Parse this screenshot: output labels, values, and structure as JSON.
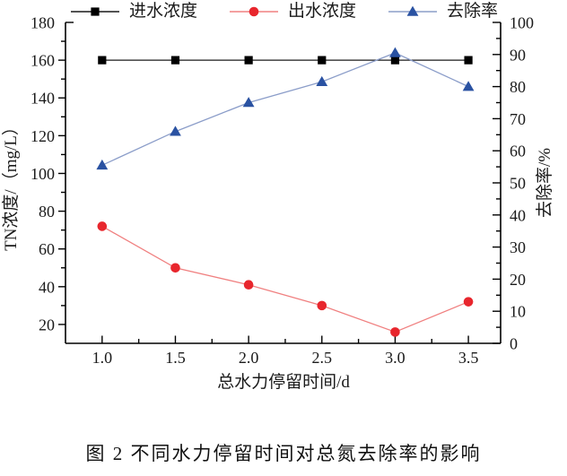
{
  "figure": {
    "caption": "图 2 不同水力停留时间对总氮去除率的影响"
  },
  "chart_data": {
    "type": "line",
    "title": "",
    "xlabel": "总水力停留时间/d",
    "ylabel_left": "TN浓度/（mg/L）",
    "ylabel_right": "去除率/%",
    "x": [
      1.0,
      1.5,
      2.0,
      2.5,
      3.0,
      3.5
    ],
    "x_tick_labels": [
      "1.0",
      "1.5",
      "2.0",
      "2.5",
      "3.0",
      "3.5"
    ],
    "y_left_tick_labels": [
      "20",
      "40",
      "60",
      "80",
      "100",
      "120",
      "140",
      "160",
      "180"
    ],
    "y_right_tick_labels": [
      "0",
      "10",
      "20",
      "30",
      "40",
      "50",
      "60",
      "70",
      "80",
      "90",
      "100"
    ],
    "xlim": [
      0.75,
      3.72
    ],
    "ylim_left": [
      10,
      180
    ],
    "ylim_right": [
      0,
      100
    ],
    "grid": false,
    "legend_position": "top",
    "series": [
      {
        "name": "进水浓度",
        "id": "influent-concentration",
        "axis": "left",
        "marker": "square",
        "marker_color": "#000000",
        "line_color": "#1a1a1a",
        "values": [
          160,
          160,
          160,
          160,
          160,
          160
        ]
      },
      {
        "name": "出水浓度",
        "id": "effluent-concentration",
        "axis": "left",
        "marker": "circle",
        "marker_color": "#e8262d",
        "line_color": "#f08080",
        "values": [
          72,
          50,
          41,
          30,
          16,
          32
        ]
      },
      {
        "name": "去除率",
        "id": "removal-rate",
        "axis": "right",
        "marker": "triangle",
        "marker_color": "#2a52a2",
        "line_color": "#8b9dc9",
        "values": [
          55.5,
          66,
          75,
          81.5,
          90.5,
          80
        ]
      }
    ]
  }
}
